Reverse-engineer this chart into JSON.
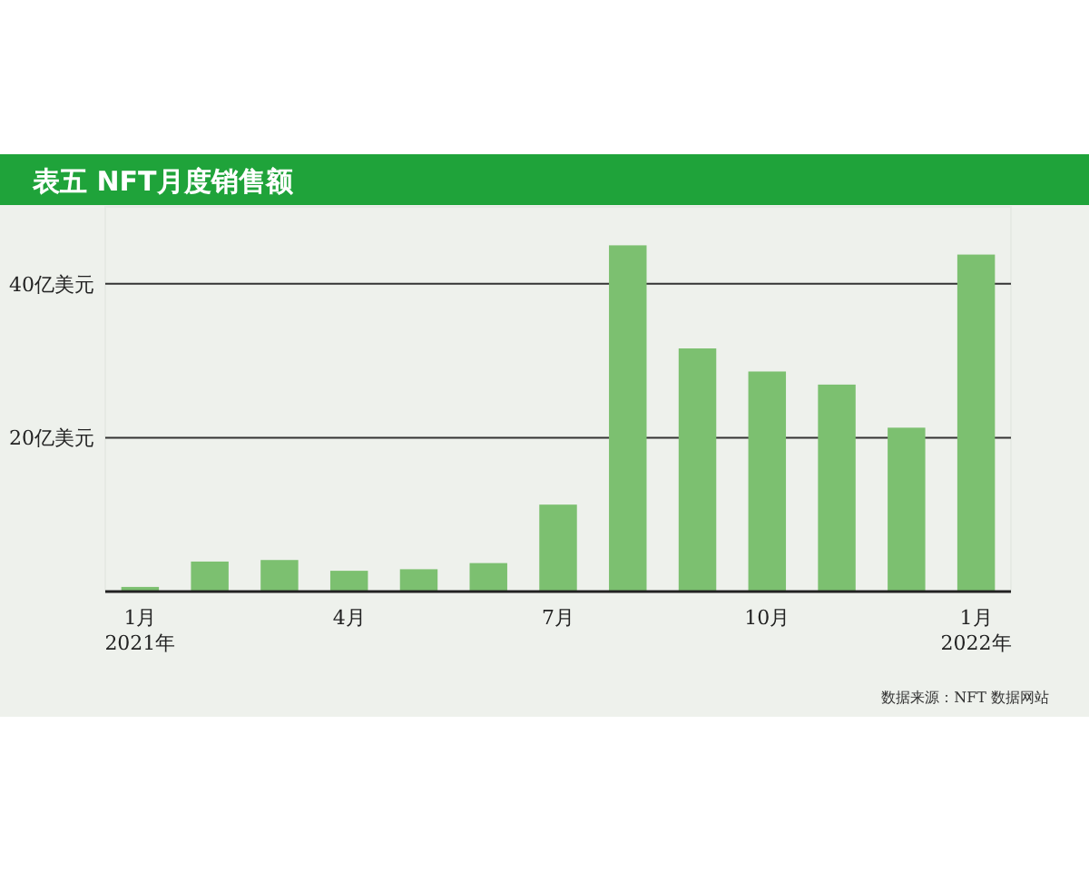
{
  "chart_data": {
    "type": "bar",
    "title": "表五 NFT月度销售额",
    "categories": [
      "1月\n2021年",
      null,
      null,
      "4月",
      null,
      null,
      "7月",
      null,
      null,
      "10月",
      null,
      null,
      "1月\n2022年"
    ],
    "values": [
      0.6,
      3.9,
      4.1,
      2.7,
      2.9,
      3.7,
      11.3,
      45,
      31.6,
      28.6,
      26.9,
      21.3,
      43.8
    ],
    "color": "#7cc070",
    "yticks": [
      {
        "value": 20,
        "label": "20亿美元"
      },
      {
        "value": 40,
        "label": "40亿美元"
      }
    ],
    "ylim": [
      0,
      50
    ],
    "grid": "y",
    "annotations": [
      "数据来源：NFT 数据网站"
    ]
  }
}
